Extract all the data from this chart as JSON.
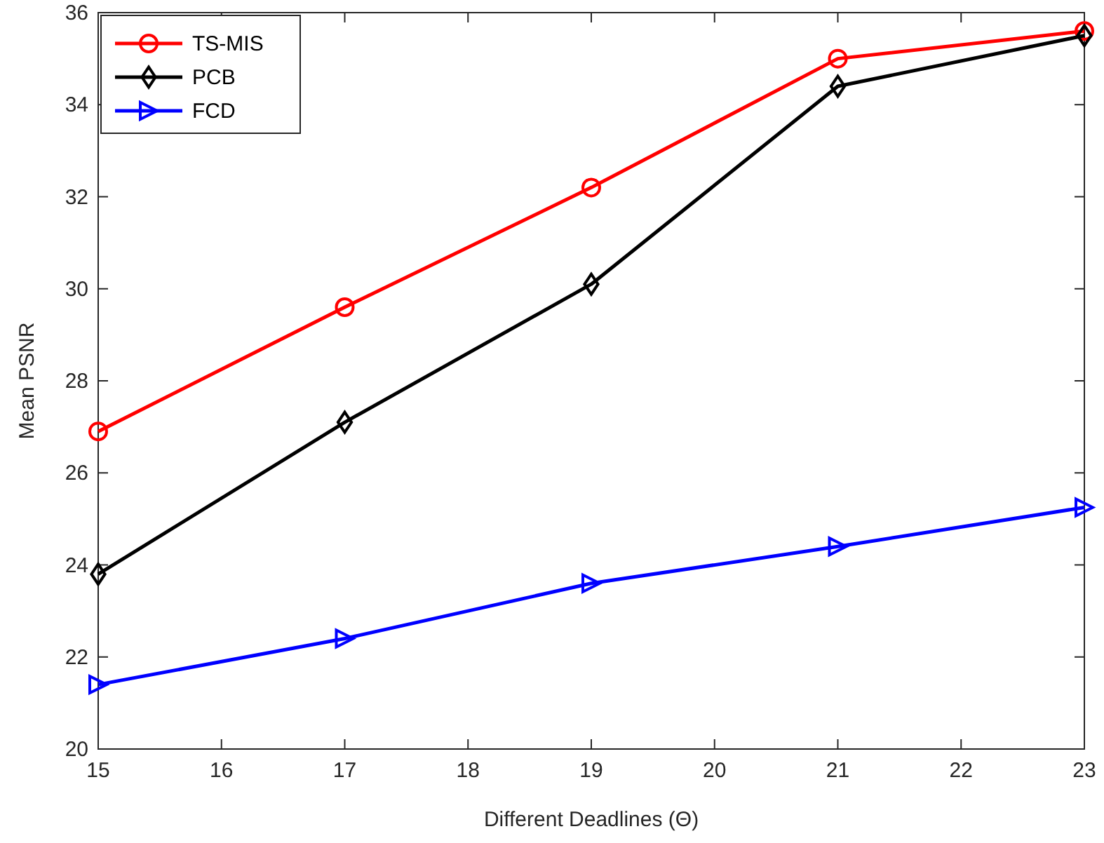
{
  "chart_data": {
    "type": "line",
    "xlabel": "Different Deadlines (Θ)",
    "ylabel": "Mean PSNR",
    "x": [
      15,
      17,
      19,
      21,
      23
    ],
    "xlim": [
      15,
      23
    ],
    "xticks": [
      15,
      16,
      17,
      18,
      19,
      20,
      21,
      22,
      23
    ],
    "ylim": [
      20,
      36
    ],
    "yticks": [
      20,
      22,
      24,
      26,
      28,
      30,
      32,
      34,
      36
    ],
    "grid": false,
    "legend": "top left",
    "line_style": "solid",
    "series": [
      {
        "name": "TS-MIS",
        "color": "#ff0000",
        "marker": "circle",
        "values": [
          26.9,
          29.6,
          32.2,
          35.0,
          35.6
        ]
      },
      {
        "name": "PCB",
        "color": "#000000",
        "marker": "diamond",
        "values": [
          23.8,
          27.1,
          30.1,
          34.4,
          35.5
        ]
      },
      {
        "name": "FCD",
        "color": "#0000ff",
        "marker": "triangle",
        "values": [
          21.4,
          22.4,
          23.6,
          24.4,
          25.25
        ]
      }
    ]
  }
}
